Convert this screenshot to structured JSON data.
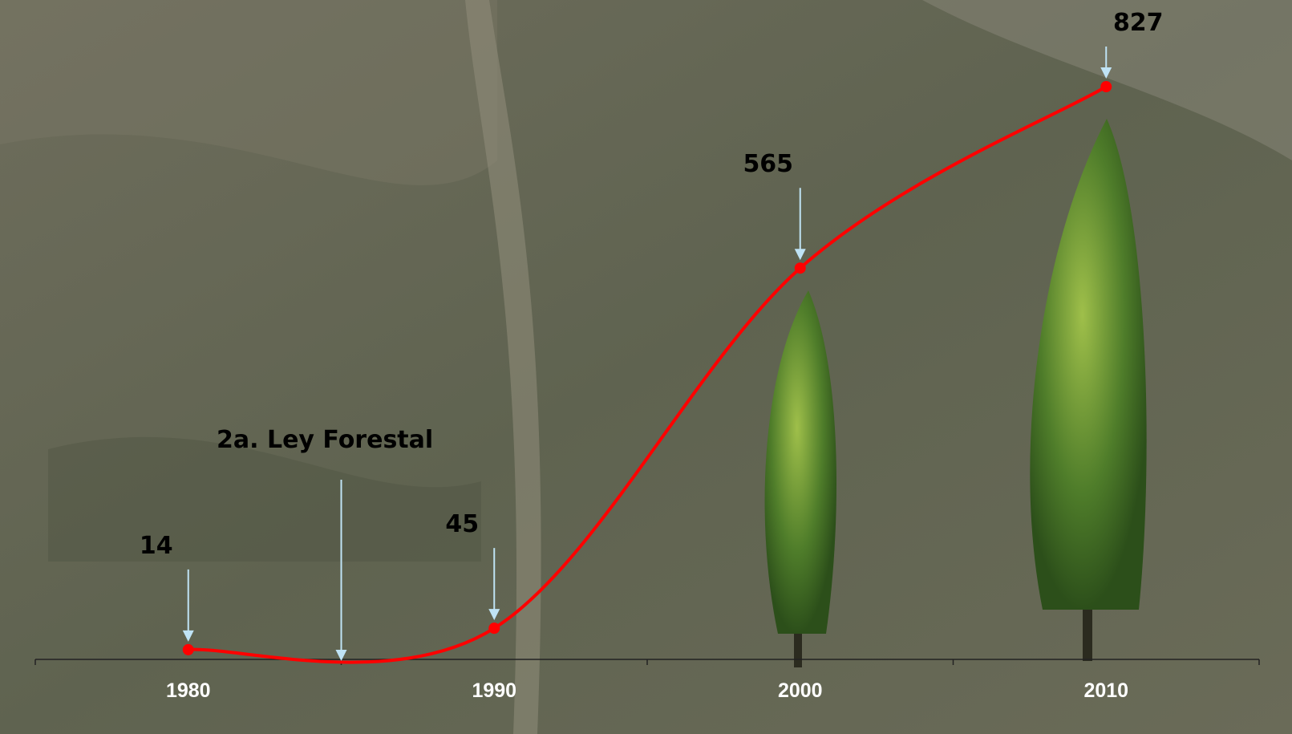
{
  "chart_data": {
    "type": "line",
    "categories": [
      "1980",
      "1990",
      "2000",
      "2010"
    ],
    "series": [
      {
        "name": null,
        "color": "#ff0000",
        "values": [
          14,
          45,
          565,
          827
        ],
        "value_labels": [
          "14",
          "45",
          "565",
          "827"
        ]
      }
    ],
    "ylim": [
      0,
      900
    ],
    "annotations": [
      {
        "text": "2a. Ley Forestal"
      }
    ],
    "arrow_color": "#bfe3f5"
  }
}
